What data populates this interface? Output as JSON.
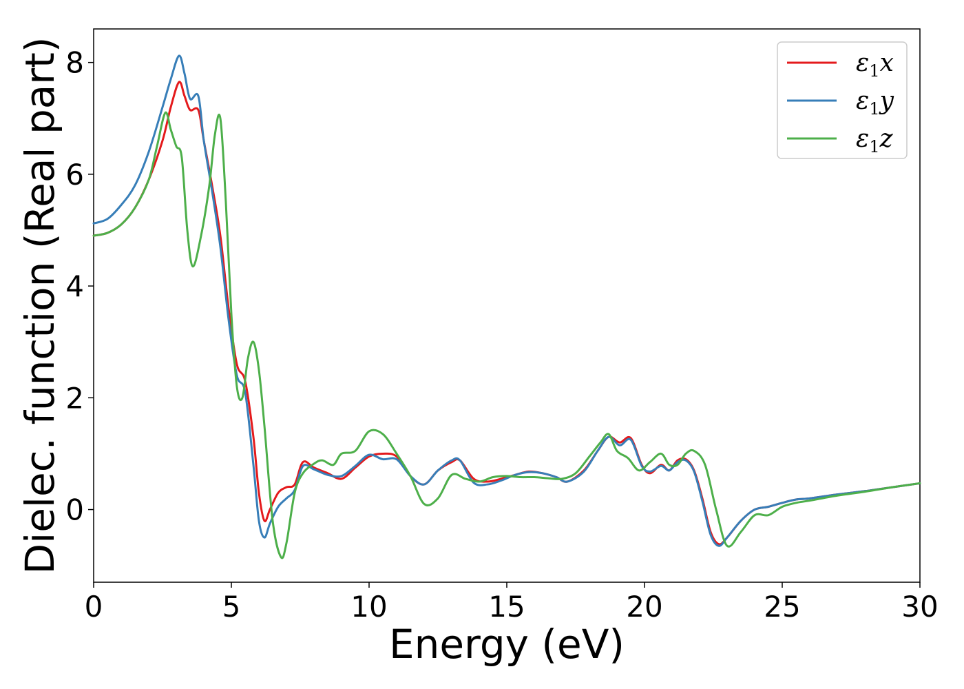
{
  "chart_data": {
    "type": "line",
    "xlabel": "Energy (eV)",
    "ylabel": "Dielec. function (Real part)",
    "xlim": [
      0,
      30
    ],
    "ylim": [
      -1.3,
      8.6
    ],
    "xticks": [
      0,
      5,
      10,
      15,
      20,
      25,
      30
    ],
    "xtick_labels": [
      "0",
      "5",
      "10",
      "15",
      "20",
      "25",
      "30"
    ],
    "yticks": [
      0,
      2,
      4,
      6,
      8
    ],
    "ytick_labels": [
      "0",
      "2",
      "4",
      "6",
      "8"
    ],
    "grid": false,
    "legend_position": "top-right",
    "series": [
      {
        "name": "ε1x",
        "color": "#e41a1c",
        "x": [
          0,
          0.5,
          1,
          1.5,
          2,
          2.5,
          2.8,
          3.1,
          3.3,
          3.5,
          3.8,
          4.0,
          4.3,
          4.6,
          4.9,
          5.2,
          5.5,
          5.8,
          6.0,
          6.2,
          6.4,
          6.7,
          7.0,
          7.3,
          7.6,
          8.0,
          8.5,
          9.0,
          9.5,
          10.0,
          10.5,
          11.0,
          11.5,
          12.0,
          12.5,
          13.0,
          13.3,
          13.8,
          14.3,
          14.8,
          15.3,
          15.8,
          16.3,
          16.8,
          17.2,
          17.8,
          18.3,
          18.7,
          19.1,
          19.5,
          19.9,
          20.2,
          20.6,
          20.9,
          21.2,
          21.5,
          21.8,
          22.1,
          22.4,
          22.7,
          23.0,
          23.5,
          24.0,
          24.5,
          25.0,
          25.5,
          26.0,
          27.0,
          28.0,
          29.0,
          30.0
        ],
        "y": [
          4.9,
          4.95,
          5.1,
          5.4,
          5.9,
          6.6,
          7.2,
          7.65,
          7.4,
          7.15,
          7.15,
          6.6,
          5.8,
          4.9,
          3.6,
          2.6,
          2.3,
          1.3,
          0.3,
          -0.2,
          0.0,
          0.3,
          0.4,
          0.45,
          0.85,
          0.75,
          0.65,
          0.55,
          0.75,
          0.95,
          1.0,
          0.95,
          0.6,
          0.45,
          0.7,
          0.85,
          0.88,
          0.55,
          0.5,
          0.55,
          0.62,
          0.68,
          0.65,
          0.58,
          0.5,
          0.7,
          1.05,
          1.3,
          1.2,
          1.28,
          0.8,
          0.65,
          0.8,
          0.7,
          0.88,
          0.9,
          0.7,
          0.2,
          -0.4,
          -0.62,
          -0.5,
          -0.2,
          0.0,
          0.05,
          0.12,
          0.18,
          0.2,
          0.27,
          0.33,
          0.4,
          0.47
        ]
      },
      {
        "name": "ε1y",
        "color": "#377eb8",
        "x": [
          0,
          0.5,
          1,
          1.5,
          2,
          2.5,
          2.8,
          3.1,
          3.3,
          3.5,
          3.8,
          4.0,
          4.3,
          4.6,
          4.9,
          5.2,
          5.5,
          5.8,
          6.0,
          6.2,
          6.4,
          6.7,
          7.0,
          7.3,
          7.6,
          8.0,
          8.5,
          9.0,
          9.5,
          10.0,
          10.5,
          11.0,
          11.5,
          12.0,
          12.5,
          13.0,
          13.3,
          13.8,
          14.3,
          14.8,
          15.3,
          15.8,
          16.3,
          16.8,
          17.2,
          17.8,
          18.3,
          18.7,
          19.1,
          19.5,
          19.9,
          20.2,
          20.6,
          20.9,
          21.2,
          21.5,
          21.8,
          22.1,
          22.4,
          22.7,
          23.0,
          23.5,
          24.0,
          24.5,
          25.0,
          25.5,
          26.0,
          27.0,
          28.0,
          29.0,
          30.0
        ],
        "y": [
          5.12,
          5.2,
          5.45,
          5.8,
          6.4,
          7.2,
          7.7,
          8.12,
          7.8,
          7.35,
          7.4,
          6.6,
          5.7,
          4.7,
          3.4,
          2.4,
          2.1,
          0.8,
          -0.2,
          -0.5,
          -0.25,
          0.05,
          0.2,
          0.35,
          0.78,
          0.72,
          0.62,
          0.6,
          0.78,
          0.98,
          0.9,
          0.9,
          0.6,
          0.45,
          0.7,
          0.88,
          0.88,
          0.48,
          0.45,
          0.52,
          0.62,
          0.67,
          0.65,
          0.58,
          0.5,
          0.68,
          1.05,
          1.3,
          1.15,
          1.25,
          0.78,
          0.68,
          0.78,
          0.7,
          0.85,
          0.88,
          0.68,
          0.15,
          -0.45,
          -0.65,
          -0.5,
          -0.2,
          0.0,
          0.05,
          0.12,
          0.18,
          0.2,
          0.27,
          0.33,
          0.4,
          0.47
        ]
      },
      {
        "name": "ε1z",
        "color": "#4daf4a",
        "x": [
          0,
          0.5,
          1,
          1.5,
          2,
          2.3,
          2.6,
          2.8,
          3.0,
          3.2,
          3.4,
          3.6,
          3.9,
          4.2,
          4.4,
          4.6,
          4.8,
          5.0,
          5.2,
          5.4,
          5.6,
          5.8,
          6.0,
          6.2,
          6.5,
          6.8,
          7.0,
          7.3,
          7.6,
          8.0,
          8.3,
          8.7,
          9.0,
          9.5,
          10.0,
          10.5,
          11.0,
          11.5,
          12.0,
          12.5,
          13.0,
          13.5,
          14.0,
          14.5,
          15.0,
          15.5,
          16.0,
          16.5,
          17.0,
          17.5,
          18.0,
          18.4,
          18.7,
          19.0,
          19.4,
          19.8,
          20.2,
          20.6,
          20.9,
          21.2,
          21.5,
          21.8,
          22.2,
          22.6,
          23.0,
          23.5,
          24.0,
          24.5,
          25.0,
          25.5,
          26.0,
          27.0,
          28.0,
          29.0,
          30.0
        ],
        "y": [
          4.9,
          4.95,
          5.1,
          5.4,
          5.9,
          6.5,
          7.1,
          6.8,
          6.5,
          6.3,
          5.0,
          4.35,
          4.9,
          5.8,
          6.7,
          7.0,
          5.5,
          3.5,
          2.2,
          2.0,
          2.7,
          3.0,
          2.5,
          1.5,
          -0.2,
          -0.85,
          -0.6,
          0.3,
          0.65,
          0.82,
          0.88,
          0.8,
          1.0,
          1.05,
          1.4,
          1.35,
          1.0,
          0.6,
          0.1,
          0.2,
          0.62,
          0.55,
          0.5,
          0.58,
          0.6,
          0.58,
          0.58,
          0.56,
          0.55,
          0.65,
          0.95,
          1.2,
          1.35,
          1.05,
          0.92,
          0.7,
          0.85,
          1.0,
          0.8,
          0.8,
          1.0,
          1.05,
          0.8,
          0.0,
          -0.65,
          -0.4,
          -0.1,
          -0.1,
          0.05,
          0.12,
          0.16,
          0.25,
          0.32,
          0.4,
          0.47
        ]
      }
    ]
  }
}
